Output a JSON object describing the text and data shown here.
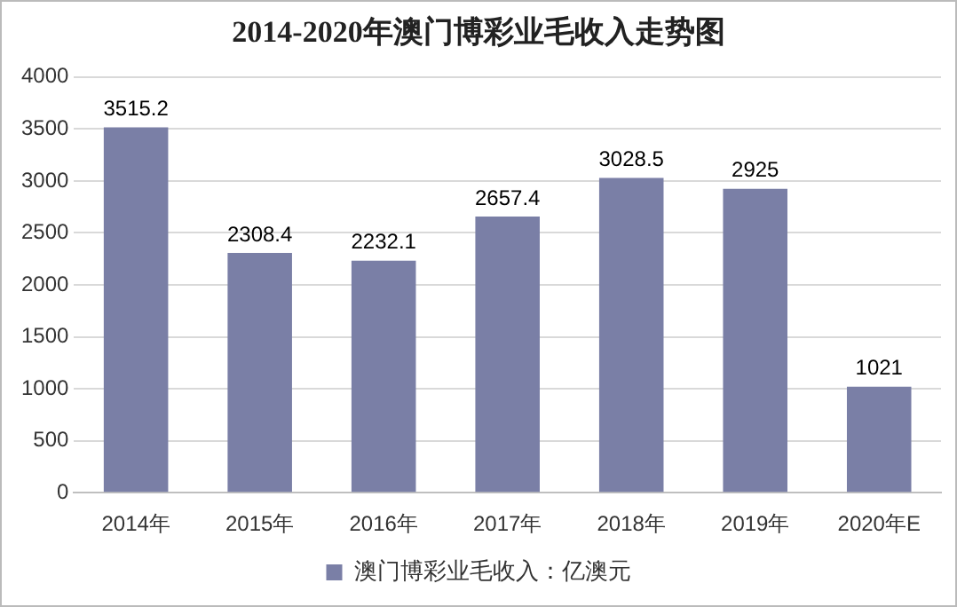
{
  "chart_data": {
    "type": "bar",
    "title": "2014-2020年澳门博彩业毛收入走势图",
    "categories": [
      "2014年",
      "2015年",
      "2016年",
      "2017年",
      "2018年",
      "2019年",
      "2020年E"
    ],
    "series": [
      {
        "name": "澳门博彩业毛收入：亿澳元",
        "color": "#7a7fa6",
        "values": [
          3515.2,
          2308.4,
          2232.1,
          2657.4,
          3028.5,
          2925,
          1021
        ]
      }
    ],
    "ylim": [
      0,
      4000
    ],
    "yticks": [
      0,
      500,
      1000,
      1500,
      2000,
      2500,
      3000,
      3500,
      4000
    ],
    "grid": "y",
    "legend": "bottom",
    "data_labels": true
  }
}
